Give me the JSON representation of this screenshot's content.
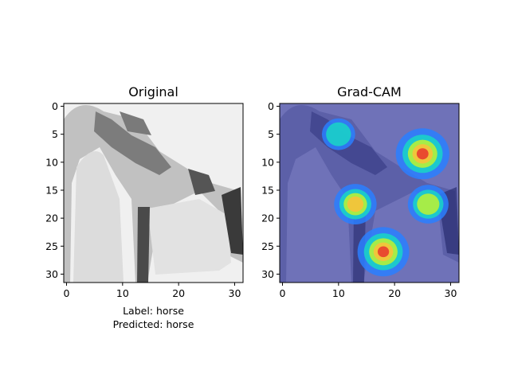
{
  "figure": {
    "label_line": "Label: horse",
    "predicted_line": "Predicted: horse"
  },
  "chart_data": [
    {
      "type": "heatmap",
      "title": "Original",
      "xlabel": "",
      "ylabel": "",
      "xlim": [
        -0.5,
        31.5
      ],
      "ylim": [
        31.5,
        -0.5
      ],
      "x_ticks": [
        0,
        10,
        20,
        30
      ],
      "y_ticks": [
        0,
        5,
        10,
        15,
        20,
        25,
        30
      ],
      "grid": false,
      "colormap": "grayscale",
      "image_size": [
        32,
        32
      ],
      "content": "grayscale image of a horse (legs, neck and head against a light background)"
    },
    {
      "type": "heatmap",
      "title": "Grad-CAM",
      "xlabel": "",
      "ylabel": "",
      "xlim": [
        -0.5,
        31.5
      ],
      "ylim": [
        31.5,
        -0.5
      ],
      "x_ticks": [
        0,
        10,
        20,
        30
      ],
      "y_ticks": [
        0,
        5,
        10,
        15,
        20,
        25,
        30
      ],
      "grid": false,
      "colormap": "jet",
      "overlay": "original image blended with Grad-CAM activation map",
      "hotspots": [
        {
          "x": 25,
          "y": 8.5,
          "intensity": 1.0
        },
        {
          "x": 18,
          "y": 26,
          "intensity": 0.95
        },
        {
          "x": 13,
          "y": 17.5,
          "intensity": 0.7
        },
        {
          "x": 26,
          "y": 17.5,
          "intensity": 0.65
        },
        {
          "x": 10,
          "y": 5,
          "intensity": 0.45
        }
      ]
    }
  ]
}
